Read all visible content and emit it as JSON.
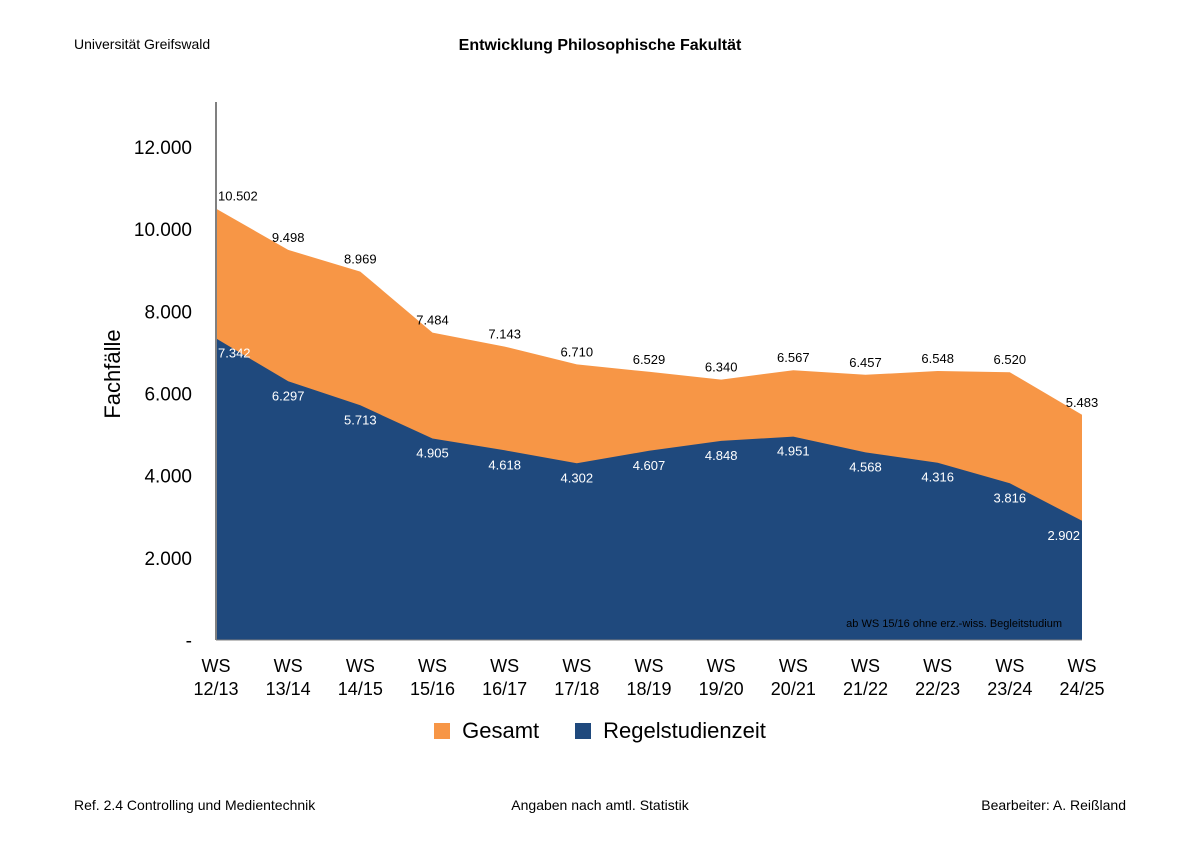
{
  "header": {
    "left": "Universität Greifswald",
    "title": "Entwicklung Philosophische Fakultät"
  },
  "footer": {
    "left": "Ref. 2.4 Controlling und Medientechnik",
    "center": "Angaben nach amtl. Statistik",
    "right": "Bearbeiter: A. Reißland"
  },
  "chart_data": {
    "type": "area",
    "title": "Entwicklung Philosophische Fakultät",
    "ylabel": "Fachfälle",
    "xlabel": "",
    "ylim": [
      0,
      13000
    ],
    "yticks": [
      0,
      2000,
      4000,
      6000,
      8000,
      10000,
      12000
    ],
    "ytick_labels": [
      "-",
      "2.000",
      "4.000",
      "6.000",
      "8.000",
      "10.000",
      "12.000"
    ],
    "grid": false,
    "legend_placement": "bottom",
    "categories": [
      "WS 12/13",
      "WS 13/14",
      "WS 14/15",
      "WS 15/16",
      "WS 16/17",
      "WS 17/18",
      "WS 18/19",
      "WS 19/20",
      "WS 20/21",
      "WS 21/22",
      "WS 22/23",
      "WS 23/24",
      "WS 24/25"
    ],
    "category_lines": [
      [
        "WS",
        "12/13"
      ],
      [
        "WS",
        "13/14"
      ],
      [
        "WS",
        "14/15"
      ],
      [
        "WS",
        "15/16"
      ],
      [
        "WS",
        "16/17"
      ],
      [
        "WS",
        "17/18"
      ],
      [
        "WS",
        "18/19"
      ],
      [
        "WS",
        "19/20"
      ],
      [
        "WS",
        "20/21"
      ],
      [
        "WS",
        "21/22"
      ],
      [
        "WS",
        "22/23"
      ],
      [
        "WS",
        "23/24"
      ],
      [
        "WS",
        "24/25"
      ]
    ],
    "series": [
      {
        "name": "Gesamt",
        "color": "#F79646",
        "values": [
          10502,
          9498,
          8969,
          7484,
          7143,
          6710,
          6529,
          6340,
          6567,
          6457,
          6548,
          6520,
          5483
        ],
        "labels": [
          "10.502",
          "9.498",
          "8.969",
          "7.484",
          "7.143",
          "6.710",
          "6.529",
          "6.340",
          "6.567",
          "6.457",
          "6.548",
          "6.520",
          "5.483"
        ]
      },
      {
        "name": "Regelstudienzeit",
        "color": "#1F497D",
        "values": [
          7342,
          6297,
          5713,
          4905,
          4618,
          4302,
          4607,
          4848,
          4951,
          4568,
          4316,
          3816,
          2902
        ],
        "labels": [
          "7.342",
          "6.297",
          "5.713",
          "4.905",
          "4.618",
          "4.302",
          "4.607",
          "4.848",
          "4.951",
          "4.568",
          "4.316",
          "3.816",
          "2.902"
        ]
      }
    ],
    "annotation": "ab WS 15/16 ohne erz.-wiss. Begleitstudium"
  }
}
